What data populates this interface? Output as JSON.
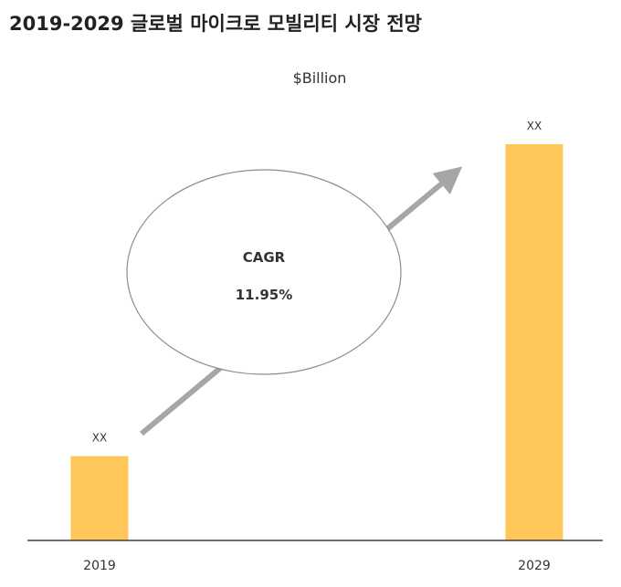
{
  "page": {
    "title": "2019-2029 글로벌 마이크로 모빌리티 시장 전망"
  },
  "chart_data": {
    "type": "bar",
    "title": "2019-2029 글로벌 마이크로 모빌리티 시장 전망",
    "unit_label": "$Billion",
    "categories": [
      "2019",
      "2029"
    ],
    "values": [
      1,
      4.7
    ],
    "data_labels": [
      "XX",
      "XX"
    ],
    "annotation": {
      "label": "CAGR",
      "value": "11.95%"
    },
    "grid": false,
    "legend": "none",
    "colors": {
      "bar": "#FFC65A",
      "arrow": "#A6A6A6",
      "ellipse_stroke": "#8C8C8C",
      "axis": "#404040"
    }
  }
}
